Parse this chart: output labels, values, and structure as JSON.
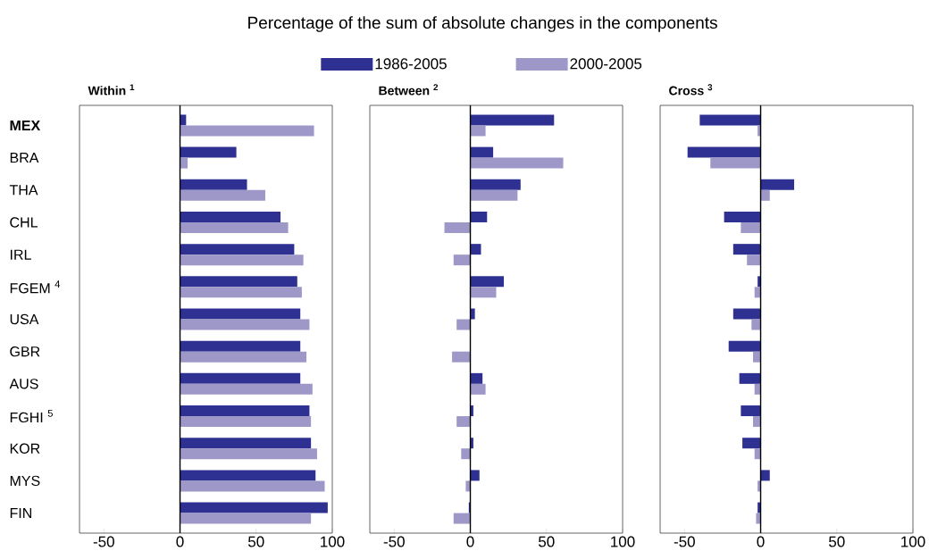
{
  "chart_data": [
    {
      "type": "bar",
      "orientation": "horizontal",
      "title": "Within $^{1}$",
      "annotations": [
        "Percentage of the sum of absolute changes in the components"
      ],
      "legend": "top",
      "categories": [
        "**MEX**",
        "BRA",
        "THA",
        "CHL",
        "IRL",
        "FGEM $^{4}$",
        "USA",
        "GBR",
        "AUS",
        "FGHI $^{5}$",
        "KOR",
        "MYS",
        "FIN"
      ],
      "xlim": [
        -66,
        100
      ],
      "xticks": [
        -50,
        0,
        50,
        100
      ],
      "series": [
        {
          "name": "1986-2005",
          "color": "#2e3192",
          "values": [
            4,
            37,
            44,
            66,
            75,
            77,
            79,
            79,
            79,
            85,
            86,
            89,
            97
          ]
        },
        {
          "name": "2000-2005",
          "color": "#9e98c9",
          "values": [
            88,
            5,
            56,
            71,
            81,
            80,
            85,
            83,
            87,
            86,
            90,
            95,
            86
          ]
        }
      ]
    },
    {
      "type": "bar",
      "orientation": "horizontal",
      "title": "Between $^{2}$",
      "tick_labels": "x",
      "categories": [
        null,
        null,
        null,
        null,
        null,
        null,
        null,
        null,
        null,
        null,
        null,
        null,
        null
      ],
      "xlim": [
        -66,
        100
      ],
      "xticks": [
        -50,
        0,
        50,
        100
      ],
      "series": [
        {
          "color": "#2e3192",
          "values": [
            55,
            15,
            33,
            11,
            7,
            22,
            3,
            0,
            8,
            2,
            2,
            6,
            -1
          ]
        },
        {
          "color": "#9e98c9",
          "values": [
            10,
            61,
            31,
            -17,
            -11,
            17,
            -9,
            -12,
            10,
            -9,
            -6,
            -3,
            -11
          ]
        }
      ]
    },
    {
      "type": "bar",
      "orientation": "horizontal",
      "title": "Cross $^{3}$",
      "tick_labels": "x",
      "categories": [
        null,
        null,
        null,
        null,
        null,
        null,
        null,
        null,
        null,
        null,
        null,
        null,
        null
      ],
      "xlim": [
        -66,
        100
      ],
      "xticks": [
        -50,
        0,
        50,
        100
      ],
      "series": [
        {
          "color": "#2e3192",
          "values": [
            -40,
            -48,
            22,
            -24,
            -18,
            -2,
            -18,
            -21,
            -14,
            -13,
            -12,
            6,
            -2
          ]
        },
        {
          "color": "#9e98c9",
          "values": [
            -2,
            -33,
            6,
            -13,
            -9,
            -4,
            -6,
            -5,
            -4,
            -5,
            -4,
            -2,
            -3
          ]
        }
      ]
    }
  ]
}
